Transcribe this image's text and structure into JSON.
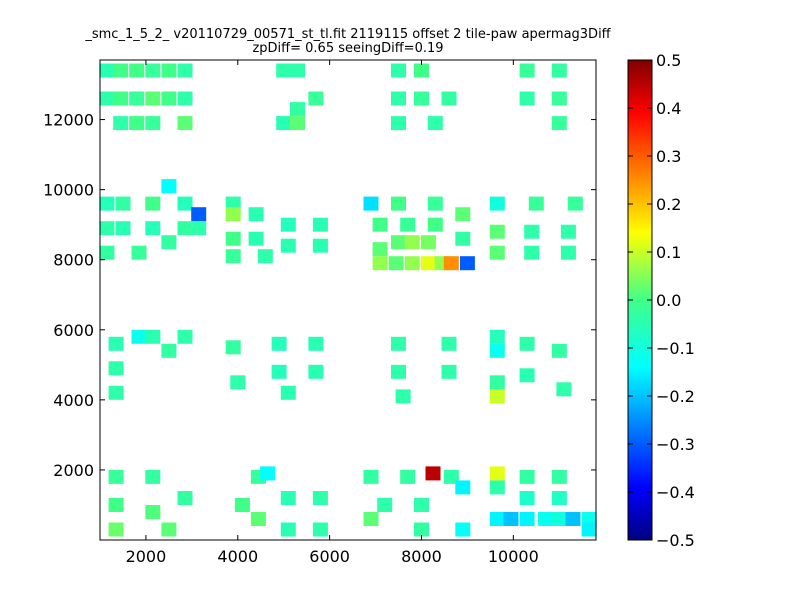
{
  "chart_data": {
    "type": "heatmap",
    "title_line1": "_smc_1_5_2_ v20110729_00571_st_tl.fit 2119115 offset 2 tile-paw apermag3Diff",
    "title_line2": "zpDiff= 0.65 seeingDiff=0.19",
    "xlabel": "",
    "ylabel": "",
    "xlim": [
      1000,
      11800
    ],
    "ylim": [
      0,
      13700
    ],
    "xticks": [
      "2000",
      "4000",
      "6000",
      "8000",
      "10000"
    ],
    "yticks": [
      "2000",
      "4000",
      "6000",
      "8000",
      "10000",
      "12000"
    ],
    "colorbar": {
      "range": [
        -0.5,
        0.5
      ],
      "ticks": [
        "−0.5",
        "−0.4",
        "−0.3",
        "−0.2",
        "−0.1",
        "0.0",
        "0.1",
        "0.2",
        "0.3",
        "0.4",
        "0.5"
      ],
      "colormap": "jet"
    },
    "grid": false,
    "cells": [
      {
        "x": 1150,
        "y": 13400,
        "v": -0.05
      },
      {
        "x": 1450,
        "y": 13400,
        "v": 0.0
      },
      {
        "x": 1800,
        "y": 13400,
        "v": 0.0
      },
      {
        "x": 2150,
        "y": 13400,
        "v": -0.02
      },
      {
        "x": 2500,
        "y": 13400,
        "v": 0.0
      },
      {
        "x": 2850,
        "y": 13400,
        "v": -0.04
      },
      {
        "x": 1150,
        "y": 12600,
        "v": -0.04
      },
      {
        "x": 1450,
        "y": 12600,
        "v": 0.0
      },
      {
        "x": 1800,
        "y": 12600,
        "v": -0.02
      },
      {
        "x": 2150,
        "y": 12600,
        "v": 0.02
      },
      {
        "x": 2500,
        "y": 12600,
        "v": 0.0
      },
      {
        "x": 2850,
        "y": 12600,
        "v": -0.04
      },
      {
        "x": 1450,
        "y": 11900,
        "v": -0.04
      },
      {
        "x": 1800,
        "y": 11900,
        "v": 0.0
      },
      {
        "x": 2150,
        "y": 11900,
        "v": -0.02
      },
      {
        "x": 2850,
        "y": 11900,
        "v": 0.02
      },
      {
        "x": 5000,
        "y": 13400,
        "v": -0.04
      },
      {
        "x": 5300,
        "y": 13400,
        "v": -0.04
      },
      {
        "x": 5700,
        "y": 12600,
        "v": -0.02
      },
      {
        "x": 5300,
        "y": 12300,
        "v": -0.03
      },
      {
        "x": 5000,
        "y": 11900,
        "v": -0.05
      },
      {
        "x": 5300,
        "y": 11900,
        "v": 0.02
      },
      {
        "x": 7500,
        "y": 13400,
        "v": -0.04
      },
      {
        "x": 8000,
        "y": 13400,
        "v": 0.0
      },
      {
        "x": 7500,
        "y": 12600,
        "v": -0.04
      },
      {
        "x": 8000,
        "y": 12600,
        "v": -0.02
      },
      {
        "x": 8600,
        "y": 12600,
        "v": -0.03
      },
      {
        "x": 7500,
        "y": 11900,
        "v": -0.04
      },
      {
        "x": 8300,
        "y": 11900,
        "v": -0.04
      },
      {
        "x": 10300,
        "y": 13400,
        "v": -0.02
      },
      {
        "x": 11000,
        "y": 13400,
        "v": -0.03
      },
      {
        "x": 10300,
        "y": 12600,
        "v": -0.04
      },
      {
        "x": 11000,
        "y": 12600,
        "v": -0.02
      },
      {
        "x": 11000,
        "y": 11900,
        "v": -0.02
      },
      {
        "x": 2500,
        "y": 10100,
        "v": -0.14
      },
      {
        "x": 1150,
        "y": 9600,
        "v": -0.06
      },
      {
        "x": 1500,
        "y": 9600,
        "v": -0.03
      },
      {
        "x": 2150,
        "y": 9600,
        "v": 0.0
      },
      {
        "x": 2850,
        "y": 9600,
        "v": -0.06
      },
      {
        "x": 3150,
        "y": 9300,
        "v": -0.3
      },
      {
        "x": 1150,
        "y": 8900,
        "v": -0.04
      },
      {
        "x": 1500,
        "y": 8900,
        "v": -0.05
      },
      {
        "x": 2150,
        "y": 8900,
        "v": -0.06
      },
      {
        "x": 2850,
        "y": 8900,
        "v": -0.03
      },
      {
        "x": 3150,
        "y": 8900,
        "v": -0.04
      },
      {
        "x": 1150,
        "y": 8200,
        "v": -0.03
      },
      {
        "x": 1850,
        "y": 8200,
        "v": -0.02
      },
      {
        "x": 2500,
        "y": 8500,
        "v": -0.03
      },
      {
        "x": 3900,
        "y": 9600,
        "v": -0.04
      },
      {
        "x": 3900,
        "y": 9300,
        "v": 0.06
      },
      {
        "x": 4400,
        "y": 9300,
        "v": -0.05
      },
      {
        "x": 5100,
        "y": 9000,
        "v": -0.06
      },
      {
        "x": 5800,
        "y": 9000,
        "v": -0.05
      },
      {
        "x": 3900,
        "y": 8600,
        "v": 0.0
      },
      {
        "x": 4400,
        "y": 8600,
        "v": -0.05
      },
      {
        "x": 5100,
        "y": 8400,
        "v": -0.05
      },
      {
        "x": 5800,
        "y": 8400,
        "v": -0.05
      },
      {
        "x": 3900,
        "y": 8100,
        "v": -0.02
      },
      {
        "x": 4600,
        "y": 8100,
        "v": -0.04
      },
      {
        "x": 6900,
        "y": 9600,
        "v": -0.17
      },
      {
        "x": 7500,
        "y": 9600,
        "v": 0.0
      },
      {
        "x": 8300,
        "y": 9600,
        "v": -0.02
      },
      {
        "x": 8900,
        "y": 9300,
        "v": 0.02
      },
      {
        "x": 7100,
        "y": 9000,
        "v": 0.0
      },
      {
        "x": 7700,
        "y": 9000,
        "v": -0.02
      },
      {
        "x": 8300,
        "y": 9000,
        "v": 0.0
      },
      {
        "x": 8900,
        "y": 8600,
        "v": -0.03
      },
      {
        "x": 7100,
        "y": 8300,
        "v": 0.02
      },
      {
        "x": 7500,
        "y": 8500,
        "v": 0.02
      },
      {
        "x": 7800,
        "y": 8500,
        "v": 0.06
      },
      {
        "x": 8150,
        "y": 8500,
        "v": 0.04
      },
      {
        "x": 7100,
        "y": 7900,
        "v": 0.06
      },
      {
        "x": 7450,
        "y": 7900,
        "v": 0.02
      },
      {
        "x": 7800,
        "y": 7900,
        "v": 0.06
      },
      {
        "x": 8150,
        "y": 7900,
        "v": 0.12
      },
      {
        "x": 8450,
        "y": 7900,
        "v": 0.06
      },
      {
        "x": 8650,
        "y": 7900,
        "v": 0.25
      },
      {
        "x": 9000,
        "y": 7900,
        "v": -0.3
      },
      {
        "x": 9650,
        "y": 9600,
        "v": -0.1
      },
      {
        "x": 10500,
        "y": 9600,
        "v": -0.02
      },
      {
        "x": 11350,
        "y": 9600,
        "v": -0.02
      },
      {
        "x": 9650,
        "y": 8800,
        "v": 0.02
      },
      {
        "x": 10400,
        "y": 8800,
        "v": -0.04
      },
      {
        "x": 11200,
        "y": 8800,
        "v": -0.04
      },
      {
        "x": 9650,
        "y": 8200,
        "v": 0.02
      },
      {
        "x": 10400,
        "y": 8200,
        "v": -0.04
      },
      {
        "x": 11200,
        "y": 8200,
        "v": -0.04
      },
      {
        "x": 1350,
        "y": 5600,
        "v": -0.05
      },
      {
        "x": 1850,
        "y": 5800,
        "v": -0.12
      },
      {
        "x": 2150,
        "y": 5800,
        "v": -0.05
      },
      {
        "x": 2850,
        "y": 5800,
        "v": -0.04
      },
      {
        "x": 2500,
        "y": 5400,
        "v": -0.03
      },
      {
        "x": 1350,
        "y": 4900,
        "v": -0.04
      },
      {
        "x": 1350,
        "y": 4200,
        "v": -0.04
      },
      {
        "x": 3900,
        "y": 5500,
        "v": -0.03
      },
      {
        "x": 4900,
        "y": 5600,
        "v": -0.06
      },
      {
        "x": 5700,
        "y": 5600,
        "v": -0.05
      },
      {
        "x": 4900,
        "y": 4800,
        "v": -0.06
      },
      {
        "x": 5700,
        "y": 4800,
        "v": -0.05
      },
      {
        "x": 4000,
        "y": 4500,
        "v": -0.04
      },
      {
        "x": 5100,
        "y": 4200,
        "v": -0.05
      },
      {
        "x": 7500,
        "y": 5600,
        "v": -0.04
      },
      {
        "x": 8600,
        "y": 5600,
        "v": -0.04
      },
      {
        "x": 7500,
        "y": 4800,
        "v": -0.04
      },
      {
        "x": 8600,
        "y": 4800,
        "v": -0.04
      },
      {
        "x": 7600,
        "y": 4100,
        "v": -0.04
      },
      {
        "x": 9650,
        "y": 5800,
        "v": -0.06
      },
      {
        "x": 9650,
        "y": 5400,
        "v": -0.12
      },
      {
        "x": 10300,
        "y": 5600,
        "v": -0.04
      },
      {
        "x": 11000,
        "y": 5400,
        "v": -0.03
      },
      {
        "x": 9650,
        "y": 4500,
        "v": -0.03
      },
      {
        "x": 10300,
        "y": 4700,
        "v": -0.05
      },
      {
        "x": 11100,
        "y": 4300,
        "v": -0.04
      },
      {
        "x": 9650,
        "y": 4100,
        "v": 0.1
      },
      {
        "x": 1350,
        "y": 1800,
        "v": -0.02
      },
      {
        "x": 2150,
        "y": 1800,
        "v": -0.03
      },
      {
        "x": 2850,
        "y": 1200,
        "v": -0.03
      },
      {
        "x": 1350,
        "y": 1000,
        "v": 0.0
      },
      {
        "x": 2150,
        "y": 800,
        "v": 0.01
      },
      {
        "x": 1350,
        "y": 300,
        "v": 0.03
      },
      {
        "x": 2500,
        "y": 300,
        "v": 0.02
      },
      {
        "x": 4100,
        "y": 1000,
        "v": 0.0
      },
      {
        "x": 4450,
        "y": 1800,
        "v": -0.02
      },
      {
        "x": 4650,
        "y": 1900,
        "v": -0.14
      },
      {
        "x": 5100,
        "y": 1200,
        "v": -0.05
      },
      {
        "x": 5800,
        "y": 1200,
        "v": -0.04
      },
      {
        "x": 4450,
        "y": 600,
        "v": 0.02
      },
      {
        "x": 5100,
        "y": 300,
        "v": -0.05
      },
      {
        "x": 5800,
        "y": 300,
        "v": -0.04
      },
      {
        "x": 6900,
        "y": 1800,
        "v": -0.03
      },
      {
        "x": 7200,
        "y": 1000,
        "v": -0.04
      },
      {
        "x": 6900,
        "y": 600,
        "v": 0.02
      },
      {
        "x": 7700,
        "y": 1800,
        "v": -0.03
      },
      {
        "x": 8250,
        "y": 1900,
        "v": 0.45
      },
      {
        "x": 8650,
        "y": 1800,
        "v": -0.04
      },
      {
        "x": 8000,
        "y": 1000,
        "v": -0.04
      },
      {
        "x": 8900,
        "y": 1500,
        "v": -0.15
      },
      {
        "x": 8000,
        "y": 300,
        "v": -0.03
      },
      {
        "x": 8900,
        "y": 300,
        "v": -0.13
      },
      {
        "x": 9650,
        "y": 1900,
        "v": 0.12
      },
      {
        "x": 9650,
        "y": 1500,
        "v": -0.04
      },
      {
        "x": 10300,
        "y": 1800,
        "v": -0.03
      },
      {
        "x": 11000,
        "y": 1800,
        "v": -0.03
      },
      {
        "x": 10300,
        "y": 1200,
        "v": -0.08
      },
      {
        "x": 11000,
        "y": 1200,
        "v": -0.07
      },
      {
        "x": 9650,
        "y": 600,
        "v": -0.15
      },
      {
        "x": 9950,
        "y": 600,
        "v": -0.2
      },
      {
        "x": 10300,
        "y": 600,
        "v": -0.15
      },
      {
        "x": 10700,
        "y": 600,
        "v": -0.12
      },
      {
        "x": 11000,
        "y": 600,
        "v": -0.1
      },
      {
        "x": 11300,
        "y": 600,
        "v": -0.2
      },
      {
        "x": 11650,
        "y": 600,
        "v": -0.12
      },
      {
        "x": 11650,
        "y": 300,
        "v": -0.15
      }
    ]
  }
}
